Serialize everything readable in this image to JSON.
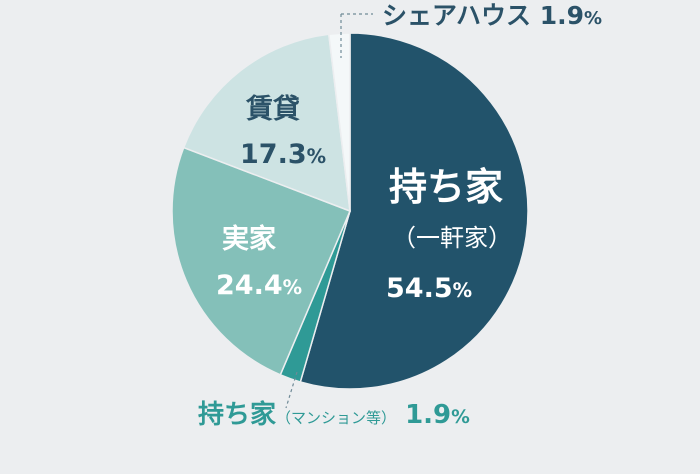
{
  "chart_data": {
    "type": "pie",
    "title": "",
    "start_angle_deg": 0,
    "direction": "clockwise",
    "slices": [
      {
        "name": "持ち家",
        "sub": "（一軒家）",
        "value": 54.5,
        "display": "54.5",
        "unit": "%",
        "color": "#22536b"
      },
      {
        "name": "持ち家",
        "sub": "（マンション等）",
        "value": 1.9,
        "display": "1.9",
        "unit": "%",
        "color": "#2f9a96"
      },
      {
        "name": "実家",
        "sub": "",
        "value": 24.4,
        "display": "24.4",
        "unit": "%",
        "color": "#84c0b9"
      },
      {
        "name": "賃貸",
        "sub": "",
        "value": 17.3,
        "display": "17.3",
        "unit": "%",
        "color": "#cde3e3"
      },
      {
        "name": "シェアハウス",
        "sub": "",
        "value": 1.9,
        "display": "1.9",
        "unit": "%",
        "color": "#f4f8f9"
      }
    ]
  }
}
